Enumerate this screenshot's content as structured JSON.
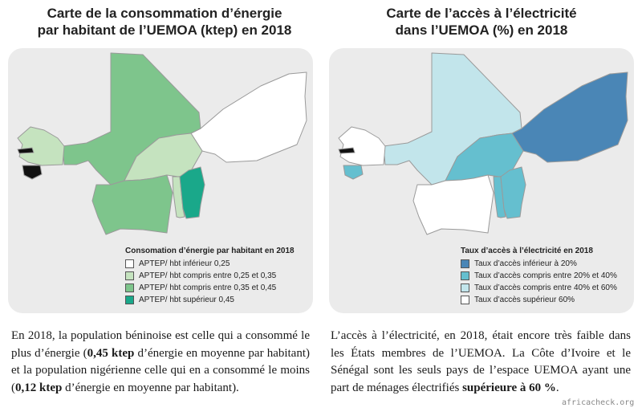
{
  "colors": {
    "panel_bg": "#ebebeb",
    "energy_scale": [
      "#ffffff",
      "#c5e3bf",
      "#7ec58c",
      "#1aa88a"
    ],
    "access_scale": [
      "#4a86b6",
      "#65bfcf",
      "#c2e5eb",
      "#ffffff"
    ],
    "no_data": "#111111",
    "border": "#9a9a9a"
  },
  "left_map": {
    "title_line1": "Carte de la consommation d’énergie",
    "title_line2": "par habitant de l’UEMOA (ktep) en 2018",
    "legend_title": "Consomation d’énergie par habitant en 2018",
    "legend_items": [
      {
        "label": "APTEP/ hbt inférieur 0,25",
        "color": "#ffffff"
      },
      {
        "label": "APTEP/ hbt compris entre 0,25 et 0,35",
        "color": "#c5e3bf"
      },
      {
        "label": "APTEP/ hbt compris entre 0,35 et 0,45",
        "color": "#7ec58c"
      },
      {
        "label": "APTEP/ hbt supérieur 0,45",
        "color": "#1aa88a"
      }
    ],
    "countries": [
      {
        "name": "niger",
        "class": 0
      },
      {
        "name": "mali",
        "class": 2
      },
      {
        "name": "senegal",
        "class": 1
      },
      {
        "name": "burkina-faso",
        "class": 1
      },
      {
        "name": "cote-d-ivoire",
        "class": 2
      },
      {
        "name": "togo",
        "class": 1
      },
      {
        "name": "benin",
        "class": 3
      },
      {
        "name": "guinea-bissau",
        "class": -1
      },
      {
        "name": "gambia",
        "class": -1
      }
    ]
  },
  "right_map": {
    "title_line1": "Carte de l’accès à l’électricité",
    "title_line2": "dans l’UEMOA (%) en 2018",
    "legend_title": "Taux d’accès à l’électricité en 2018",
    "legend_items": [
      {
        "label": "Taux d’accès inférieur à 20%",
        "color": "#4a86b6"
      },
      {
        "label": "Taux d’accès compris entre 20% et 40%",
        "color": "#65bfcf"
      },
      {
        "label": "Taux d’accès compris entre 40% et 60%",
        "color": "#c2e5eb"
      },
      {
        "label": "Taux d’accès supérieur 60%",
        "color": "#ffffff"
      }
    ],
    "countries": [
      {
        "name": "niger",
        "class": 0
      },
      {
        "name": "mali",
        "class": 2
      },
      {
        "name": "senegal",
        "class": 3
      },
      {
        "name": "burkina-faso",
        "class": 1
      },
      {
        "name": "cote-d-ivoire",
        "class": 3
      },
      {
        "name": "togo",
        "class": 1
      },
      {
        "name": "benin",
        "class": 1
      },
      {
        "name": "guinea-bissau",
        "class": 1
      },
      {
        "name": "gambia",
        "class": -1
      }
    ]
  },
  "paragraph_left": {
    "part1": "En 2018, la population béninoise est celle qui a consommé le plus d’énergie (",
    "bold1": "0,45 ktep",
    "part2": " d’énergie en moyenne par habitant) et la population nigérienne celle qui en a consommé le moins (",
    "bold2": "0,12 ktep",
    "part3": " d’énergie en moyenne par habitant)."
  },
  "paragraph_right": {
    "part1": "L’accès à l’électricité, en 2018, était encore très faible dans les États membres de l’UEMOA. La Côte d’Ivoire et le Sénégal sont les seuls pays de l’espace UEMOA ayant une part de ménages électrifiés ",
    "bold1": "supérieure à 60 %",
    "part2": "."
  },
  "credit": "africacheck.org"
}
